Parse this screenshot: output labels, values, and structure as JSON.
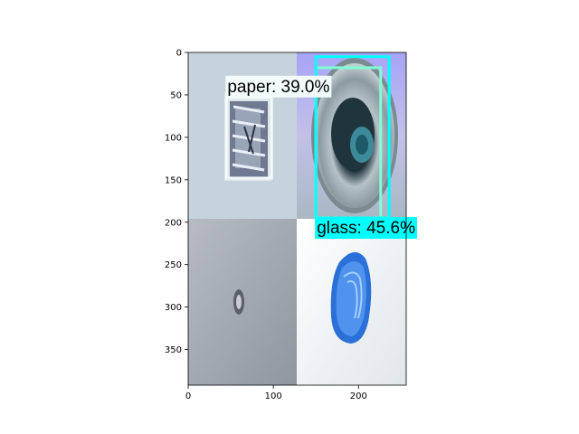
{
  "figure": {
    "axes": {
      "x": {
        "ticks": [
          0,
          100,
          200
        ],
        "lim": [
          0,
          256
        ]
      },
      "y": {
        "ticks": [
          0,
          50,
          100,
          150,
          200,
          250,
          300,
          350
        ],
        "lim": [
          0,
          392
        ]
      }
    },
    "mosaic_tiles": [
      {
        "id": "top-left",
        "content": "crumpled foil wrapper on white background"
      },
      {
        "id": "top-right",
        "content": "open beverage can top with pull tab"
      },
      {
        "id": "bottom-left",
        "content": "small crumpled foil piece on grey background"
      },
      {
        "id": "bottom-right",
        "content": "crushed blue plastic bottle on white background"
      }
    ],
    "detections": [
      {
        "id": "paper",
        "label": "paper: 39.0%",
        "box": {
          "x0": 45,
          "y0": 53,
          "x1": 98,
          "y1": 148
        },
        "color": "#f2fafa"
      },
      {
        "id": "glass-inner",
        "label": "",
        "box": {
          "x0": 150,
          "y0": 18,
          "x1": 226,
          "y1": 195
        },
        "color": "#7fffd4"
      },
      {
        "id": "glass",
        "label": "glass: 45.6%",
        "box": {
          "x0": 150,
          "y0": 5,
          "x1": 236,
          "y1": 195
        },
        "color": "#00ffff"
      }
    ]
  }
}
